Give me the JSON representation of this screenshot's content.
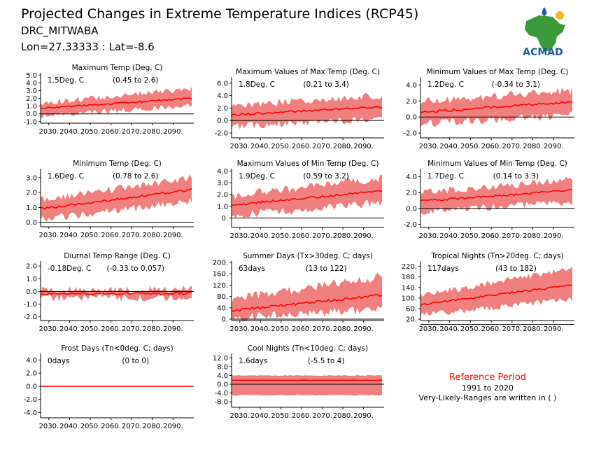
{
  "header": {
    "title": "Projected Changes in Extreme Temperature Indices (RCP45)",
    "station": "DRC_MITWABA",
    "coords": "Lon=27.33333 : Lat=-8.6"
  },
  "logo": {
    "text": "ACMAD"
  },
  "reference": {
    "title": "Reference Period",
    "period": "1991 to 2020",
    "note": "Very-Likely-Ranges are written in ( )"
  },
  "colors": {
    "band": "#f08080",
    "line": "#ff0000",
    "zero": "#000000",
    "ref_title": "#ff0000",
    "logo_text": "#1e5aa8",
    "africa": "#3a9a3a"
  },
  "x_ticks": [
    "2030.",
    "2040.",
    "2050.",
    "2060.",
    "2070.",
    "2080.",
    "2090."
  ],
  "chart_data": [
    {
      "type": "area",
      "title": "Maximum Temp (Deg. C)",
      "value_label": "1.5Deg. C",
      "range_label": "(0.45 to 2.6)",
      "x_range": [
        2026,
        2100
      ],
      "ylim": [
        -1.2,
        5.3
      ],
      "yticks": [
        -1.0,
        0.0,
        1.0,
        2.0,
        3.0,
        4.0,
        5.0
      ],
      "ytick_labels": [
        "-1.0",
        "0.0",
        "1.0",
        "2.0",
        "3.0",
        "4.0",
        "5.0"
      ],
      "mean_start": 0.7,
      "mean_end": 2.0,
      "low_start": -0.3,
      "low_end": 1.1,
      "high_start": 1.4,
      "high_end": 3.2,
      "noise": 0.35
    },
    {
      "type": "area",
      "title": "Maximum Values of Max Temp (Deg. C)",
      "value_label": "1.8Deg. C",
      "range_label": "(0.21 to 3.4)",
      "x_range": [
        2026,
        2100
      ],
      "ylim": [
        -2.8,
        7.0
      ],
      "yticks": [
        -2.0,
        0.0,
        2.0,
        4.0,
        6.0
      ],
      "ytick_labels": [
        "-2.0",
        "0.0",
        "2.0",
        "4.0",
        "6.0"
      ],
      "mean_start": 0.9,
      "mean_end": 2.2,
      "low_start": -1.0,
      "low_end": 0.4,
      "high_start": 2.4,
      "high_end": 4.0,
      "noise": 0.6
    },
    {
      "type": "area",
      "title": "Minimum Values of Max Temp (Deg. C)",
      "value_label": "1.2Deg. C",
      "range_label": "(-0.34 to 3.1)",
      "x_range": [
        2026,
        2100
      ],
      "ylim": [
        -2.6,
        5.0
      ],
      "yticks": [
        -2.0,
        0.0,
        2.0,
        4.0
      ],
      "ytick_labels": [
        "-2.0",
        "0.0",
        "2.0",
        "4.0"
      ],
      "mean_start": 0.6,
      "mean_end": 1.9,
      "low_start": -0.9,
      "low_end": 0.3,
      "high_start": 2.0,
      "high_end": 3.3,
      "noise": 0.5
    },
    {
      "type": "area",
      "title": "Minimum Temp (Deg. C)",
      "value_label": "1.6Deg. C",
      "range_label": "(0.78 to 2.6)",
      "x_range": [
        2026,
        2100
      ],
      "ylim": [
        -0.3,
        3.6
      ],
      "yticks": [
        0.0,
        1.0,
        2.0,
        3.0
      ],
      "ytick_labels": [
        "0.0",
        "1.0",
        "2.0",
        "3.0"
      ],
      "mean_start": 0.9,
      "mean_end": 2.2,
      "low_start": 0.2,
      "low_end": 1.4,
      "high_start": 1.5,
      "high_end": 3.0,
      "noise": 0.25
    },
    {
      "type": "area",
      "title": "Maximum Values of Min Temp (Deg. C)",
      "value_label": "1.9Deg. C",
      "range_label": "(0.59 to 3.2)",
      "x_range": [
        2026,
        2100
      ],
      "ylim": [
        -0.8,
        4.2
      ],
      "yticks": [
        0.0,
        1.0,
        2.0,
        3.0,
        4.0
      ],
      "ytick_labels": [
        "0.",
        "1.0",
        "2.0",
        "3.0",
        "4.0"
      ],
      "mean_start": 1.1,
      "mean_end": 2.3,
      "low_start": 0.2,
      "low_end": 1.3,
      "high_start": 1.9,
      "high_end": 3.4,
      "noise": 0.35
    },
    {
      "type": "area",
      "title": "Minimum Values of Min Temp (Deg. C)",
      "value_label": "1.7Deg. C",
      "range_label": "(0.14 to 3.3)",
      "x_range": [
        2026,
        2100
      ],
      "ylim": [
        -2.4,
        5.0
      ],
      "yticks": [
        -2.0,
        0.0,
        2.0,
        4.0
      ],
      "ytick_labels": [
        "-2.0",
        "0.0",
        "2.0",
        "4.0"
      ],
      "mean_start": 0.9,
      "mean_end": 2.3,
      "low_start": -0.4,
      "low_end": 0.8,
      "high_start": 2.0,
      "high_end": 3.6,
      "noise": 0.45
    },
    {
      "type": "area",
      "title": "Diurnal Temp Range (Deg. C)",
      "value_label": "-0.18Deg. C",
      "range_label": "(-0.33 to 0.057)",
      "x_range": [
        2026,
        2100
      ],
      "ylim": [
        -2.3,
        2.4
      ],
      "yticks": [
        -2.0,
        -1.0,
        0.0,
        1.0,
        2.0
      ],
      "ytick_labels": [
        "-2.0",
        "-1.0",
        "0.0",
        "1.0",
        "2.0"
      ],
      "mean_start": -0.2,
      "mean_end": -0.15,
      "low_start": -0.5,
      "low_end": -0.5,
      "high_start": 0.1,
      "high_end": 0.2,
      "noise": 0.3
    },
    {
      "type": "area",
      "title": "Summer Days (Tx>30deg. C; days)",
      "value_label": "63days",
      "range_label": "(13 to 122)",
      "x_range": [
        2026,
        2100
      ],
      "ylim": [
        -5,
        205
      ],
      "yticks": [
        0,
        40,
        80,
        120,
        160,
        200
      ],
      "ytick_labels": [
        "0.",
        "40.",
        "80.",
        "120.",
        "160.",
        "200."
      ],
      "mean_start": 30,
      "mean_end": 85,
      "low_start": 5,
      "low_end": 35,
      "high_start": 70,
      "high_end": 150,
      "noise": 15
    },
    {
      "type": "area",
      "title": "Tropical Nights (Tn>20deg. C; days)",
      "value_label": "117days",
      "range_label": "(43 to 182)",
      "x_range": [
        2026,
        2100
      ],
      "ylim": [
        15,
        240
      ],
      "yticks": [
        20,
        60,
        100,
        140,
        180,
        220
      ],
      "ytick_labels": [
        "20.",
        "60.",
        "100.",
        "140.",
        "180.",
        "220."
      ],
      "mean_start": 75,
      "mean_end": 150,
      "low_start": 35,
      "low_end": 95,
      "high_start": 110,
      "high_end": 210,
      "noise": 12
    },
    {
      "type": "area",
      "title": "Frost Days (Tn<0deg. C; days)",
      "value_label": "0days",
      "range_label": "(0 to 0)",
      "x_range": [
        2026,
        2100
      ],
      "ylim": [
        -4.8,
        5.0
      ],
      "yticks": [
        -4.0,
        -2.0,
        0.0,
        2.0,
        4.0
      ],
      "ytick_labels": [
        "-4.0",
        "-2.0",
        "0.0",
        "2.0",
        "4.0"
      ],
      "mean_start": 0,
      "mean_end": 0,
      "low_start": 0,
      "low_end": 0,
      "high_start": 0,
      "high_end": 0,
      "noise": 0
    },
    {
      "type": "area",
      "title": "Cool Nights (Tn<10deg. C; days)",
      "value_label": "1.6days",
      "range_label": "(-5.5 to 4)",
      "x_range": [
        2026,
        2100
      ],
      "ylim": [
        -10.5,
        14
      ],
      "yticks": [
        -8.0,
        -4.0,
        0.0,
        4.0,
        8.0,
        12.0
      ],
      "ytick_labels": [
        "-8.0",
        "-4.0",
        "0.0",
        "4.0",
        "8.0",
        "12.0"
      ],
      "mean_start": 1.8,
      "mean_end": 1.8,
      "low_start": -5.0,
      "low_end": -5.0,
      "high_start": 4.0,
      "high_end": 4.0,
      "noise": 0.2
    }
  ]
}
